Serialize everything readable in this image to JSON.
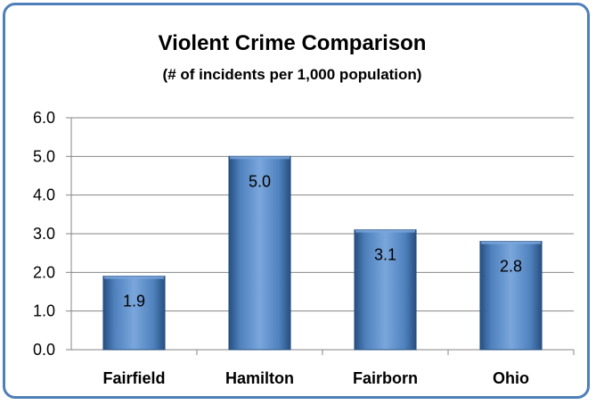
{
  "chart_data": {
    "type": "bar",
    "title": "Violent Crime Comparison",
    "subtitle": "(# of incidents per 1,000 population)",
    "categories": [
      "Fairfield",
      "Hamilton",
      "Fairborn",
      "Ohio"
    ],
    "values": [
      1.9,
      5.0,
      3.1,
      2.8
    ],
    "data_labels": [
      "1.9",
      "5.0",
      "3.1",
      "2.8"
    ],
    "yticks": [
      "0.0",
      "1.0",
      "2.0",
      "3.0",
      "4.0",
      "5.0",
      "6.0"
    ],
    "ylim": [
      0,
      6
    ],
    "grid": true,
    "legend": "none",
    "colors": {
      "bar_light": "#7aa6dc",
      "bar_mid": "#4f81bd",
      "bar_dark": "#274f80",
      "frame": "#4f7fb8",
      "grid": "#868686"
    }
  }
}
